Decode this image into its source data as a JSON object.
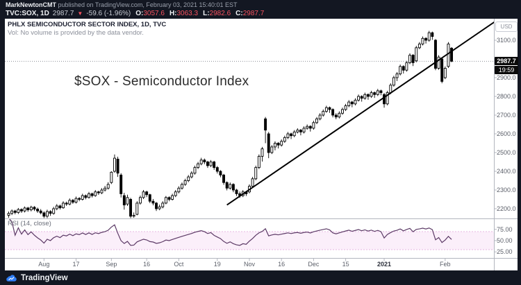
{
  "colors": {
    "background": "#131722",
    "chart_bg": "#ffffff",
    "red": "#f7525f",
    "candle": "#000000",
    "trendline": "#000000",
    "rsi_line": "#5c3a66",
    "rsi_band_fill": "#fbeffa",
    "rsi_band_edge": "#e7b4e2",
    "separator": "#b2b5be",
    "axis_text": "#5a5e68",
    "logo_blue": "#2e7df6"
  },
  "header": {
    "author": "MarkNewtonCMT",
    "published": " published on TradingView.com, February 03, 2021 15:40:01 EST",
    "symbol": "TVC:SOX, 1D",
    "last": "2987.7",
    "direction_icon": "▼",
    "change": "-59.6 (-1.96%)",
    "ohlc": [
      {
        "label": "O:",
        "value": "3057.6"
      },
      {
        "label": "H:",
        "value": "3063.3"
      },
      {
        "label": "L:",
        "value": "2982.6"
      },
      {
        "label": "C:",
        "value": "2987.7"
      }
    ]
  },
  "pane": {
    "title": "PHLX SEMICONDUCTOR SECTOR INDEX, 1D, TVC",
    "vol_note": "Vol: No volume is provided by the data vendor.",
    "annotation": "$SOX - Semiconductor Index",
    "unit": "USD",
    "price_label": "2987.7",
    "countdown": "19:59"
  },
  "rsi_pane": {
    "label": "RSI (14, close)",
    "ticks": [
      {
        "text": "75.00",
        "value": 75
      },
      {
        "text": "50.00",
        "value": 50
      },
      {
        "text": "25.00",
        "value": 25
      }
    ]
  },
  "price_axis": {
    "ticks": [
      {
        "text": "3100.0",
        "value": 3100
      },
      {
        "text": "2900.0",
        "value": 2900
      },
      {
        "text": "2800.0",
        "value": 2800
      },
      {
        "text": "2700.0",
        "value": 2700
      },
      {
        "text": "2600.0",
        "value": 2600
      },
      {
        "text": "2500.0",
        "value": 2500
      },
      {
        "text": "2400.0",
        "value": 2400
      },
      {
        "text": "2300.0",
        "value": 2300
      },
      {
        "text": "2200.0",
        "value": 2200
      }
    ]
  },
  "time_axis": {
    "labels": [
      {
        "text": "Aug",
        "index": 11
      },
      {
        "text": "17",
        "index": 21
      },
      {
        "text": "Sep",
        "index": 32
      },
      {
        "text": "16",
        "index": 43
      },
      {
        "text": "Oct",
        "index": 53
      },
      {
        "text": "19",
        "index": 65
      },
      {
        "text": "Nov",
        "index": 75
      },
      {
        "text": "16",
        "index": 85
      },
      {
        "text": "Dec",
        "index": 95
      },
      {
        "text": "15",
        "index": 105
      },
      {
        "text": "2021",
        "index": 117,
        "bold": true
      },
      {
        "text": "Feb",
        "index": 136
      }
    ]
  },
  "footer": {
    "brand": "TradingView"
  },
  "chart_data": {
    "type": "candlestick",
    "symbol": "TVC:SOX",
    "interval": "1D",
    "title": "$SOX - Semiconductor Index",
    "price_axis_visible_range": [
      2148,
      3210
    ],
    "current_price_line": 2987.7,
    "last_bar": {
      "open": 3057.6,
      "high": 3063.3,
      "low": 2982.6,
      "close": 2987.7,
      "change": -59.6,
      "change_pct": -1.96
    },
    "trendline": {
      "from": {
        "index": 68,
        "price": 2220
      },
      "to": {
        "index": 152,
        "price": 3205
      }
    },
    "rsi": {
      "period": 14,
      "source": "close",
      "overbought": 70,
      "oversold": 30,
      "axis_ticks": [
        75,
        50,
        25
      ]
    },
    "candles": [
      [
        2165,
        2185,
        2152,
        2175
      ],
      [
        2175,
        2196,
        2166,
        2188
      ],
      [
        2188,
        2194,
        2170,
        2180
      ],
      [
        2180,
        2204,
        2172,
        2196
      ],
      [
        2196,
        2202,
        2178,
        2188
      ],
      [
        2188,
        2212,
        2180,
        2204
      ],
      [
        2204,
        2210,
        2184,
        2194
      ],
      [
        2194,
        2216,
        2186,
        2208
      ],
      [
        2208,
        2214,
        2188,
        2198
      ],
      [
        2198,
        2206,
        2178,
        2188
      ],
      [
        2188,
        2198,
        2170,
        2178
      ],
      [
        2178,
        2186,
        2150,
        2160
      ],
      [
        2160,
        2195,
        2150,
        2185
      ],
      [
        2185,
        2192,
        2162,
        2175
      ],
      [
        2175,
        2210,
        2168,
        2200
      ],
      [
        2200,
        2225,
        2192,
        2215
      ],
      [
        2215,
        2222,
        2196,
        2205
      ],
      [
        2205,
        2240,
        2200,
        2230
      ],
      [
        2230,
        2238,
        2215,
        2225
      ],
      [
        2225,
        2255,
        2218,
        2245
      ],
      [
        2245,
        2252,
        2226,
        2235
      ],
      [
        2235,
        2265,
        2228,
        2255
      ],
      [
        2255,
        2262,
        2240,
        2250
      ],
      [
        2250,
        2280,
        2244,
        2270
      ],
      [
        2270,
        2276,
        2250,
        2260
      ],
      [
        2260,
        2290,
        2254,
        2280
      ],
      [
        2280,
        2286,
        2260,
        2270
      ],
      [
        2270,
        2300,
        2264,
        2290
      ],
      [
        2290,
        2296,
        2274,
        2285
      ],
      [
        2285,
        2310,
        2278,
        2300
      ],
      [
        2300,
        2322,
        2292,
        2310
      ],
      [
        2310,
        2342,
        2302,
        2330
      ],
      [
        2340,
        2400,
        2332,
        2395
      ],
      [
        2400,
        2490,
        2392,
        2470
      ],
      [
        2465,
        2478,
        2370,
        2390
      ],
      [
        2380,
        2390,
        2260,
        2280
      ],
      [
        2270,
        2285,
        2195,
        2220
      ],
      [
        2225,
        2275,
        2215,
        2260
      ],
      [
        2250,
        2258,
        2150,
        2160
      ],
      [
        2160,
        2180,
        2152,
        2165
      ],
      [
        2170,
        2240,
        2165,
        2230
      ],
      [
        2230,
        2270,
        2222,
        2260
      ],
      [
        2260,
        2300,
        2252,
        2290
      ],
      [
        2290,
        2296,
        2262,
        2275
      ],
      [
        2275,
        2280,
        2230,
        2240
      ],
      [
        2240,
        2252,
        2218,
        2230
      ],
      [
        2230,
        2236,
        2188,
        2200
      ],
      [
        2200,
        2222,
        2192,
        2210
      ],
      [
        2210,
        2240,
        2202,
        2230
      ],
      [
        2230,
        2268,
        2224,
        2260
      ],
      [
        2260,
        2266,
        2240,
        2250
      ],
      [
        2250,
        2280,
        2244,
        2270
      ],
      [
        2270,
        2300,
        2262,
        2290
      ],
      [
        2290,
        2320,
        2282,
        2310
      ],
      [
        2310,
        2340,
        2302,
        2330
      ],
      [
        2330,
        2360,
        2322,
        2350
      ],
      [
        2350,
        2380,
        2342,
        2370
      ],
      [
        2370,
        2400,
        2362,
        2390
      ],
      [
        2390,
        2430,
        2382,
        2420
      ],
      [
        2420,
        2450,
        2412,
        2440
      ],
      [
        2440,
        2472,
        2432,
        2460
      ],
      [
        2460,
        2468,
        2438,
        2450
      ],
      [
        2450,
        2456,
        2418,
        2430
      ],
      [
        2430,
        2460,
        2422,
        2450
      ],
      [
        2450,
        2456,
        2408,
        2420
      ],
      [
        2420,
        2428,
        2388,
        2400
      ],
      [
        2400,
        2406,
        2368,
        2380
      ],
      [
        2380,
        2386,
        2328,
        2340
      ],
      [
        2340,
        2346,
        2298,
        2310
      ],
      [
        2310,
        2340,
        2302,
        2330
      ],
      [
        2330,
        2336,
        2288,
        2300
      ],
      [
        2300,
        2306,
        2268,
        2280
      ],
      [
        2280,
        2292,
        2258,
        2270
      ],
      [
        2270,
        2300,
        2262,
        2290
      ],
      [
        2290,
        2296,
        2268,
        2280
      ],
      [
        2290,
        2330,
        2282,
        2320
      ],
      [
        2320,
        2370,
        2312,
        2360
      ],
      [
        2360,
        2430,
        2352,
        2420
      ],
      [
        2420,
        2490,
        2412,
        2480
      ],
      [
        2480,
        2530,
        2452,
        2520
      ],
      [
        2680,
        2690,
        2550,
        2620
      ],
      [
        2600,
        2610,
        2470,
        2500
      ],
      [
        2500,
        2540,
        2492,
        2530
      ],
      [
        2530,
        2560,
        2512,
        2550
      ],
      [
        2550,
        2556,
        2522,
        2540
      ],
      [
        2540,
        2570,
        2532,
        2560
      ],
      [
        2560,
        2590,
        2552,
        2580
      ],
      [
        2580,
        2610,
        2572,
        2600
      ],
      [
        2600,
        2606,
        2572,
        2590
      ],
      [
        2590,
        2620,
        2582,
        2610
      ],
      [
        2610,
        2630,
        2602,
        2620
      ],
      [
        2620,
        2626,
        2592,
        2610
      ],
      [
        2610,
        2640,
        2602,
        2630
      ],
      [
        2630,
        2650,
        2622,
        2640
      ],
      [
        2640,
        2646,
        2612,
        2630
      ],
      [
        2630,
        2670,
        2622,
        2660
      ],
      [
        2660,
        2690,
        2652,
        2680
      ],
      [
        2680,
        2710,
        2672,
        2700
      ],
      [
        2700,
        2730,
        2692,
        2720
      ],
      [
        2720,
        2750,
        2712,
        2740
      ],
      [
        2740,
        2746,
        2712,
        2730
      ],
      [
        2730,
        2736,
        2688,
        2700
      ],
      [
        2700,
        2710,
        2678,
        2690
      ],
      [
        2690,
        2720,
        2682,
        2710
      ],
      [
        2710,
        2740,
        2702,
        2730
      ],
      [
        2730,
        2760,
        2722,
        2750
      ],
      [
        2750,
        2780,
        2742,
        2770
      ],
      [
        2770,
        2776,
        2742,
        2760
      ],
      [
        2760,
        2790,
        2752,
        2780
      ],
      [
        2780,
        2810,
        2772,
        2800
      ],
      [
        2800,
        2806,
        2772,
        2790
      ],
      [
        2790,
        2820,
        2782,
        2810
      ],
      [
        2810,
        2816,
        2782,
        2800
      ],
      [
        2800,
        2830,
        2792,
        2820
      ],
      [
        2820,
        2826,
        2792,
        2810
      ],
      [
        2810,
        2840,
        2802,
        2830
      ],
      [
        2830,
        2836,
        2806,
        2820
      ],
      [
        2810,
        2818,
        2740,
        2760
      ],
      [
        2760,
        2830,
        2752,
        2820
      ],
      [
        2820,
        2870,
        2812,
        2860
      ],
      [
        2860,
        2910,
        2852,
        2900
      ],
      [
        2900,
        2930,
        2882,
        2920
      ],
      [
        2920,
        2970,
        2912,
        2960
      ],
      [
        2960,
        2966,
        2922,
        2940
      ],
      [
        2940,
        2990,
        2932,
        2980
      ],
      [
        2980,
        3030,
        2972,
        3020
      ],
      [
        3020,
        3026,
        2962,
        2980
      ],
      [
        2990,
        3070,
        2982,
        3060
      ],
      [
        3060,
        3090,
        3052,
        3080
      ],
      [
        3080,
        3120,
        3072,
        3110
      ],
      [
        3110,
        3116,
        3082,
        3100
      ],
      [
        3100,
        3150,
        3092,
        3140
      ],
      [
        3140,
        3146,
        3102,
        3120
      ],
      [
        3100,
        3106,
        2940,
        2950
      ],
      [
        2950,
        3020,
        2942,
        3010
      ],
      [
        3000,
        3006,
        2870,
        2880
      ],
      [
        2900,
        2960,
        2892,
        2950
      ],
      [
        2960,
        3090,
        2952,
        3080
      ],
      [
        3057.6,
        3063.3,
        2982.6,
        2987.7
      ]
    ]
  }
}
